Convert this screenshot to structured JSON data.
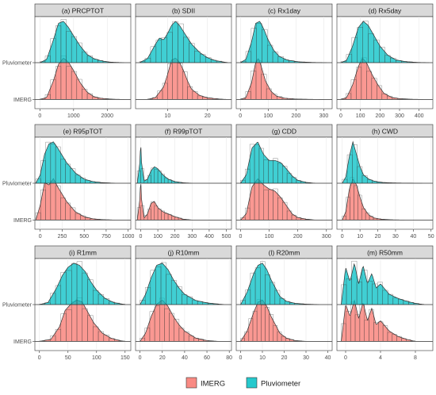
{
  "legend": {
    "items": [
      {
        "label": "IMERG",
        "color": "#F8766D"
      },
      {
        "label": "Pluviometer",
        "color": "#00BFC4"
      }
    ]
  },
  "colors": {
    "imerg_fill": "#F8766D",
    "pluvio_fill": "#00BFC4",
    "outline": "#333333",
    "strip_bg": "#D9D9D9",
    "grid": "#E8E8E8"
  },
  "chart_data": [
    {
      "type": "area",
      "title": "(a) PRCPTOT",
      "xlim": [
        -150,
        2700
      ],
      "xticks": [
        0,
        1000,
        2000
      ],
      "ytick_labels": [
        "Pluviometer",
        "IMERG"
      ],
      "series": [
        {
          "name": "IMERG",
          "x": [
            0,
            200,
            400,
            550,
            700,
            850,
            1000,
            1200,
            1400,
            1600,
            1800,
            2000,
            2200,
            2500
          ],
          "density": [
            0,
            0.05,
            0.45,
            0.85,
            1.0,
            0.9,
            0.7,
            0.4,
            0.18,
            0.07,
            0.03,
            0.015,
            0.005,
            0
          ]
        },
        {
          "name": "Pluviometer",
          "x": [
            0,
            200,
            400,
            550,
            700,
            850,
            1000,
            1200,
            1400,
            1600,
            1800,
            2000,
            2200,
            2500
          ],
          "density": [
            0,
            0.08,
            0.55,
            0.95,
            1.0,
            0.85,
            0.65,
            0.4,
            0.2,
            0.1,
            0.05,
            0.02,
            0.008,
            0
          ]
        }
      ]
    },
    {
      "type": "area",
      "title": "(b) SDII",
      "xlim": [
        2,
        26
      ],
      "xticks": [
        10,
        20
      ],
      "ytick_labels": [
        "Pluviometer",
        "IMERG"
      ],
      "series": [
        {
          "name": "IMERG",
          "x": [
            5,
            7,
            9,
            10,
            11,
            12,
            13,
            14,
            15,
            16,
            18,
            20,
            23,
            25
          ],
          "density": [
            0,
            0.05,
            0.3,
            0.6,
            0.95,
            1.0,
            0.9,
            0.7,
            0.45,
            0.25,
            0.1,
            0.04,
            0.01,
            0
          ]
        },
        {
          "name": "Pluviometer",
          "x": [
            3,
            5,
            7,
            8,
            9,
            10,
            11,
            12,
            13,
            14,
            16,
            18,
            20,
            22,
            25
          ],
          "density": [
            0,
            0.1,
            0.45,
            0.6,
            0.55,
            0.7,
            0.9,
            1.0,
            0.9,
            0.75,
            0.45,
            0.25,
            0.12,
            0.05,
            0
          ]
        }
      ]
    },
    {
      "type": "area",
      "title": "(c) Rx1day",
      "xlim": [
        -15,
        330
      ],
      "xticks": [
        0,
        100,
        200,
        300
      ],
      "ytick_labels": [
        "Pluviometer",
        "IMERG"
      ],
      "series": [
        {
          "name": "IMERG",
          "x": [
            0,
            20,
            40,
            55,
            65,
            75,
            90,
            110,
            130,
            160,
            200,
            250,
            300
          ],
          "density": [
            0,
            0.05,
            0.4,
            0.9,
            1.0,
            0.8,
            0.45,
            0.2,
            0.08,
            0.03,
            0.01,
            0.003,
            0
          ]
        },
        {
          "name": "Pluviometer",
          "x": [
            0,
            20,
            40,
            55,
            70,
            85,
            100,
            120,
            140,
            170,
            210,
            260,
            310
          ],
          "density": [
            0,
            0.08,
            0.5,
            0.95,
            1.0,
            0.8,
            0.55,
            0.3,
            0.15,
            0.06,
            0.02,
            0.005,
            0
          ]
        }
      ]
    },
    {
      "type": "area",
      "title": "(d) Rx5day",
      "xlim": [
        -20,
        470
      ],
      "xticks": [
        0,
        100,
        200,
        300,
        400
      ],
      "ytick_labels": [
        "Pluviometer",
        "IMERG"
      ],
      "series": [
        {
          "name": "IMERG",
          "x": [
            0,
            30,
            60,
            90,
            110,
            130,
            160,
            190,
            220,
            260,
            300,
            360,
            420
          ],
          "density": [
            0,
            0.05,
            0.35,
            0.8,
            1.0,
            0.9,
            0.6,
            0.35,
            0.15,
            0.05,
            0.02,
            0.005,
            0
          ]
        },
        {
          "name": "Pluviometer",
          "x": [
            0,
            30,
            60,
            90,
            115,
            140,
            170,
            200,
            240,
            280,
            330,
            390,
            450
          ],
          "density": [
            0,
            0.06,
            0.4,
            0.85,
            1.0,
            0.9,
            0.65,
            0.4,
            0.18,
            0.07,
            0.025,
            0.006,
            0
          ]
        }
      ]
    },
    {
      "type": "area",
      "title": "(e) R95pTOT",
      "xlim": [
        -60,
        1030
      ],
      "xticks": [
        0,
        250,
        500,
        750,
        1000
      ],
      "ytick_labels": [
        "Pluviometer",
        "IMERG"
      ],
      "series": [
        {
          "name": "IMERG",
          "x": [
            -50,
            0,
            50,
            100,
            150,
            200,
            300,
            400,
            500,
            600,
            700,
            850
          ],
          "density": [
            0,
            0.35,
            0.9,
            0.85,
            1.0,
            0.8,
            0.45,
            0.2,
            0.08,
            0.03,
            0.01,
            0
          ]
        },
        {
          "name": "Pluviometer",
          "x": [
            -50,
            0,
            50,
            100,
            150,
            200,
            300,
            400,
            500,
            600,
            700,
            850
          ],
          "density": [
            0,
            0.2,
            0.7,
            0.95,
            1.0,
            0.85,
            0.5,
            0.25,
            0.1,
            0.04,
            0.015,
            0
          ]
        }
      ]
    },
    {
      "type": "area",
      "title": "(f) R99pTOT",
      "xlim": [
        -30,
        530
      ],
      "xticks": [
        0,
        100,
        200,
        300,
        400,
        500
      ],
      "ytick_labels": [
        "Pluviometer",
        "IMERG"
      ],
      "series": [
        {
          "name": "IMERG",
          "x": [
            -20,
            -5,
            0,
            5,
            20,
            40,
            60,
            80,
            100,
            130,
            160,
            200,
            250,
            300
          ],
          "density": [
            0,
            0.5,
            1.0,
            0.5,
            0.05,
            0.15,
            0.4,
            0.45,
            0.3,
            0.2,
            0.15,
            0.08,
            0.02,
            0
          ]
        },
        {
          "name": "Pluviometer",
          "x": [
            -20,
            -5,
            0,
            5,
            20,
            40,
            60,
            80,
            100,
            130,
            160,
            200,
            250,
            300
          ],
          "density": [
            0,
            0.5,
            1.0,
            0.5,
            0.05,
            0.1,
            0.3,
            0.4,
            0.35,
            0.2,
            0.1,
            0.04,
            0.01,
            0
          ]
        }
      ]
    },
    {
      "type": "area",
      "title": "(g) CDD",
      "xlim": [
        -15,
        320
      ],
      "xticks": [
        0,
        100,
        200,
        300
      ],
      "ytick_labels": [
        "Pluviometer",
        "IMERG"
      ],
      "series": [
        {
          "name": "IMERG",
          "x": [
            0,
            20,
            40,
            60,
            80,
            100,
            120,
            140,
            160,
            180,
            200,
            230,
            260
          ],
          "density": [
            0,
            0.15,
            0.8,
            1.0,
            0.85,
            0.75,
            0.7,
            0.55,
            0.35,
            0.15,
            0.06,
            0.02,
            0
          ]
        },
        {
          "name": "Pluviometer",
          "x": [
            0,
            20,
            40,
            60,
            80,
            100,
            120,
            140,
            160,
            180,
            200,
            230,
            260
          ],
          "density": [
            0,
            0.2,
            0.85,
            1.0,
            0.7,
            0.55,
            0.55,
            0.5,
            0.35,
            0.18,
            0.07,
            0.02,
            0
          ]
        }
      ]
    },
    {
      "type": "area",
      "title": "(h) CWD",
      "xlim": [
        -3,
        51
      ],
      "xticks": [
        0,
        10,
        20,
        30,
        40,
        50
      ],
      "ytick_labels": [
        "Pluviometer",
        "IMERG"
      ],
      "series": [
        {
          "name": "IMERG",
          "x": [
            0,
            2,
            4,
            6,
            8,
            10,
            12,
            15,
            18,
            22,
            28,
            35
          ],
          "density": [
            0,
            0.2,
            0.75,
            1.0,
            0.85,
            0.55,
            0.3,
            0.12,
            0.05,
            0.02,
            0.005,
            0
          ]
        },
        {
          "name": "Pluviometer",
          "x": [
            0,
            2,
            4,
            6,
            8,
            10,
            12,
            15,
            18,
            22,
            28,
            35,
            45
          ],
          "density": [
            0,
            0.15,
            0.65,
            1.0,
            0.7,
            0.4,
            0.2,
            0.1,
            0.05,
            0.02,
            0.008,
            0.003,
            0
          ]
        }
      ]
    },
    {
      "type": "area",
      "title": "(i) R1mm",
      "xlim": [
        -8,
        160
      ],
      "xticks": [
        0,
        50,
        100,
        150
      ],
      "ytick_labels": [
        "Pluviometer",
        "IMERG"
      ],
      "series": [
        {
          "name": "IMERG",
          "x": [
            0,
            20,
            35,
            45,
            55,
            65,
            75,
            85,
            95,
            110,
            125,
            140,
            150
          ],
          "density": [
            0,
            0.05,
            0.35,
            0.75,
            0.9,
            1.0,
            0.95,
            0.7,
            0.45,
            0.2,
            0.08,
            0.02,
            0
          ]
        },
        {
          "name": "Pluviometer",
          "x": [
            0,
            15,
            30,
            40,
            50,
            60,
            70,
            80,
            90,
            100,
            115,
            130,
            150
          ],
          "density": [
            0,
            0.05,
            0.4,
            0.7,
            0.9,
            1.0,
            0.95,
            0.8,
            0.55,
            0.35,
            0.15,
            0.05,
            0
          ]
        }
      ]
    },
    {
      "type": "area",
      "title": "(j) R10mm",
      "xlim": [
        -4,
        82
      ],
      "xticks": [
        0,
        20,
        40,
        60,
        80
      ],
      "ytick_labels": [
        "Pluviometer",
        "IMERG"
      ],
      "series": [
        {
          "name": "IMERG",
          "x": [
            0,
            5,
            10,
            15,
            20,
            25,
            30,
            35,
            40,
            50,
            60,
            70
          ],
          "density": [
            0,
            0.2,
            0.6,
            0.9,
            1.0,
            0.85,
            0.6,
            0.4,
            0.25,
            0.08,
            0.02,
            0
          ]
        },
        {
          "name": "Pluviometer",
          "x": [
            0,
            5,
            10,
            15,
            20,
            25,
            30,
            35,
            40,
            50,
            60,
            75
          ],
          "density": [
            0,
            0.25,
            0.65,
            0.95,
            1.0,
            0.85,
            0.6,
            0.4,
            0.25,
            0.1,
            0.04,
            0
          ]
        }
      ]
    },
    {
      "type": "area",
      "title": "(l) R20mm",
      "xlim": [
        -2,
        42
      ],
      "xticks": [
        0,
        10,
        20,
        30,
        40
      ],
      "ytick_labels": [
        "Pluviometer",
        "IMERG"
      ],
      "series": [
        {
          "name": "IMERG",
          "x": [
            0,
            3,
            6,
            8,
            10,
            12,
            14,
            16,
            18,
            21,
            25,
            30
          ],
          "density": [
            0,
            0.25,
            0.7,
            0.95,
            1.0,
            0.85,
            0.6,
            0.4,
            0.2,
            0.08,
            0.02,
            0
          ]
        },
        {
          "name": "Pluviometer",
          "x": [
            0,
            3,
            6,
            8,
            10,
            12,
            14,
            16,
            18,
            21,
            25,
            30,
            36
          ],
          "density": [
            0,
            0.3,
            0.75,
            0.95,
            1.0,
            0.85,
            0.6,
            0.4,
            0.2,
            0.08,
            0.03,
            0.01,
            0
          ]
        }
      ]
    },
    {
      "type": "area",
      "title": "(m) R50mm",
      "xlim": [
        -1,
        10
      ],
      "xticks": [
        0,
        4,
        8
      ],
      "ytick_labels": [
        "Pluviometer",
        "IMERG"
      ],
      "series": [
        {
          "name": "IMERG",
          "x": [
            -0.5,
            0,
            0.5,
            1,
            1.5,
            2,
            2.5,
            3,
            3.5,
            4,
            5,
            6,
            7,
            8
          ],
          "density": [
            0,
            0.9,
            0.6,
            1.0,
            0.55,
            0.95,
            0.5,
            0.8,
            0.4,
            0.5,
            0.25,
            0.12,
            0.05,
            0
          ]
        },
        {
          "name": "Pluviometer",
          "x": [
            -0.5,
            0,
            0.5,
            1,
            1.5,
            2,
            2.5,
            3,
            3.5,
            4,
            5,
            6,
            7,
            8,
            9
          ],
          "density": [
            0,
            0.9,
            0.55,
            1.0,
            0.5,
            0.95,
            0.5,
            0.75,
            0.4,
            0.5,
            0.25,
            0.15,
            0.08,
            0.03,
            0
          ]
        }
      ]
    }
  ]
}
